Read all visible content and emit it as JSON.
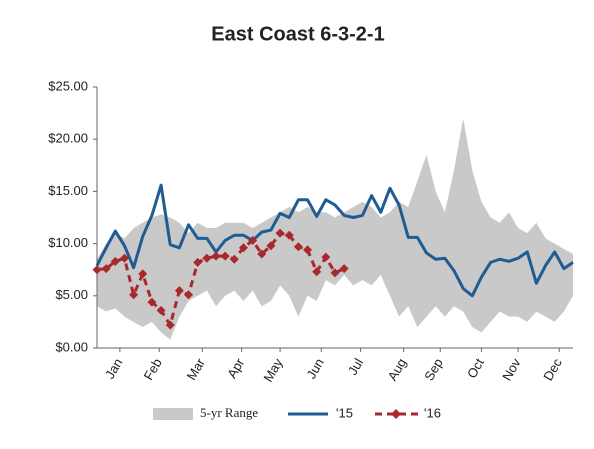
{
  "chart_data": {
    "type": "line",
    "title": "East Coast  6-3-2-1",
    "x": [
      0,
      1,
      2,
      3,
      4,
      5,
      6,
      7,
      8,
      9,
      10,
      11,
      12,
      13,
      14,
      15,
      16,
      17,
      18,
      19,
      20,
      21,
      22,
      23,
      24,
      25,
      26,
      27,
      28,
      29,
      30,
      31,
      32,
      33,
      34,
      35,
      36,
      37,
      38,
      39,
      40,
      41,
      42,
      43,
      44,
      45,
      46,
      47,
      48,
      49,
      50,
      51,
      52
    ],
    "xlim": [
      0,
      52
    ],
    "xticks": [
      {
        "value": 2.5,
        "label": "Jan"
      },
      {
        "value": 6.8,
        "label": "Feb"
      },
      {
        "value": 11.5,
        "label": "Mar"
      },
      {
        "value": 15.8,
        "label": "Apr"
      },
      {
        "value": 20,
        "label": "May"
      },
      {
        "value": 24.5,
        "label": "Jun"
      },
      {
        "value": 28.8,
        "label": "Jul"
      },
      {
        "value": 33.5,
        "label": "Aug"
      },
      {
        "value": 37.5,
        "label": "Sep"
      },
      {
        "value": 42,
        "label": "Oct"
      },
      {
        "value": 46,
        "label": "Nov"
      },
      {
        "value": 50.5,
        "label": "Dec"
      }
    ],
    "ylim": [
      0,
      25
    ],
    "yticks": [
      {
        "value": 0,
        "label": "$0.00"
      },
      {
        "value": 5,
        "label": "$5.00"
      },
      {
        "value": 10,
        "label": "$10.00"
      },
      {
        "value": 15,
        "label": "$15.00"
      },
      {
        "value": 20,
        "label": "$20.00"
      },
      {
        "value": 25,
        "label": "$25.00"
      }
    ],
    "legend": "bottom",
    "series": [
      {
        "name": "5-yr Range",
        "color": "#c9c9c9",
        "high": [
          8.5,
          10,
          11,
          10.5,
          11.5,
          12,
          12.5,
          12.8,
          12.5,
          12,
          11,
          12,
          11.5,
          11.5,
          12,
          12,
          12,
          11.5,
          12,
          12.5,
          13,
          13.5,
          13,
          13.5,
          13,
          13,
          12.5,
          13,
          13.5,
          14,
          13.5,
          12.5,
          13,
          14,
          13.5,
          16,
          18.5,
          15,
          13,
          17,
          22,
          17,
          14,
          12.5,
          12,
          13,
          11.5,
          11,
          12,
          10.5,
          10,
          9.5,
          9
        ],
        "low": [
          4,
          3.5,
          3.8,
          3,
          2.5,
          2,
          2.5,
          1.5,
          0.8,
          3,
          4.5,
          5,
          5.5,
          4,
          5,
          5.5,
          4.5,
          5.5,
          4,
          4.5,
          6,
          5,
          3,
          5,
          4.5,
          6.5,
          6,
          7,
          6,
          6.5,
          6,
          7,
          5,
          3,
          4,
          2,
          3,
          4,
          3,
          4,
          3.5,
          2,
          1.5,
          2.5,
          3.5,
          3,
          3,
          2.5,
          3.5,
          3,
          2.5,
          3.5,
          5
        ]
      },
      {
        "name": "'15",
        "color": "#1f5b94",
        "values": [
          7.9,
          9.6,
          11.2,
          9.8,
          7.7,
          10.7,
          12.7,
          15.6,
          9.9,
          9.6,
          11.8,
          10.5,
          10.5,
          9.2,
          10.3,
          10.8,
          10.8,
          10.3,
          11.1,
          11.3,
          12.9,
          12.5,
          14.2,
          14.2,
          12.6,
          14.2,
          13.7,
          12.7,
          12.5,
          12.7,
          14.6,
          13.0,
          15.3,
          13.7,
          10.6,
          10.6,
          9.1,
          8.5,
          8.6,
          7.4,
          5.7,
          5.0,
          6.8,
          8.2,
          8.5,
          8.3,
          8.6,
          9.2,
          6.2,
          7.9,
          9.2,
          7.6,
          8.2
        ]
      },
      {
        "name": "'16",
        "color": "#a8282c",
        "values": [
          7.5,
          7.6,
          8.3,
          8.6,
          5.1,
          7.1,
          4.4,
          3.6,
          2.2,
          5.5,
          5.1,
          8.2,
          8.6,
          8.8,
          8.8,
          8.5,
          9.6,
          10.3,
          9.0,
          9.8,
          11.0,
          10.8,
          9.7,
          9.4,
          7.3,
          8.7,
          7.2,
          7.6,
          null,
          null,
          null,
          null,
          null,
          null,
          null,
          null,
          null,
          null,
          null,
          null,
          null,
          null,
          null,
          null,
          null,
          null,
          null,
          null,
          null,
          null,
          null,
          null,
          null
        ]
      }
    ]
  }
}
